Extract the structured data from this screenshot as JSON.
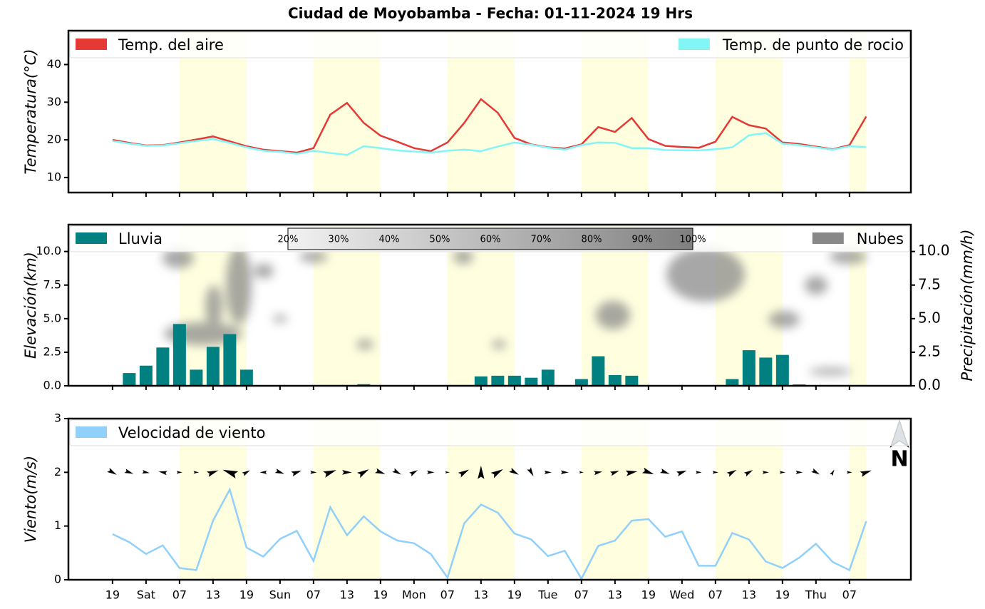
{
  "title": "Ciudad de Moyobamba   -   Fecha: 01-11-2024 19 Hrs",
  "chart_data": [
    {
      "type": "line",
      "ylabel": "Temperatura(°C)",
      "x": [
        0,
        3,
        6,
        9,
        12,
        15,
        18,
        21,
        24,
        27,
        30,
        33,
        36,
        39,
        42,
        45,
        48,
        51,
        54,
        57,
        60,
        63,
        66,
        69,
        72,
        75,
        78,
        81,
        84,
        87,
        90,
        93,
        96,
        99,
        102,
        105,
        108,
        111,
        114,
        117,
        120,
        123,
        126,
        129,
        132,
        135
      ],
      "day_spans": [
        [
          12,
          24
        ],
        [
          36,
          48
        ],
        [
          60,
          72
        ],
        [
          84,
          96
        ],
        [
          108,
          120
        ],
        [
          132,
          135
        ]
      ],
      "series": [
        {
          "name": "Temp. del aire",
          "color": "#e53935",
          "values": [
            20.0,
            19.2,
            18.5,
            18.6,
            19.3,
            20.1,
            20.9,
            19.6,
            18.3,
            17.4,
            17.0,
            16.6,
            17.8,
            26.7,
            29.8,
            24.5,
            21.1,
            19.5,
            17.8,
            17.0,
            19.3,
            24.5,
            30.8,
            27.2,
            20.5,
            18.8,
            18.0,
            17.7,
            18.8,
            23.4,
            22.1,
            25.8,
            20.2,
            18.4,
            18.1,
            17.9,
            19.5,
            26.1,
            23.9,
            23.0,
            19.3,
            18.9,
            18.2,
            17.5,
            18.6,
            26.2
          ]
        },
        {
          "name": "Temp. de punto de rocio",
          "color": "#84f5f5",
          "values": [
            19.7,
            19.0,
            18.4,
            18.5,
            19.1,
            19.7,
            20.2,
            19.2,
            18.0,
            17.1,
            16.8,
            16.3,
            17.1,
            16.5,
            16.0,
            18.3,
            17.8,
            17.2,
            16.9,
            16.6,
            17.1,
            17.4,
            17.0,
            18.2,
            19.3,
            18.7,
            17.9,
            17.4,
            18.6,
            19.3,
            19.2,
            17.8,
            17.8,
            17.3,
            17.2,
            17.2,
            17.5,
            18.0,
            21.2,
            21.8,
            19.0,
            18.6,
            18.0,
            17.4,
            18.3,
            18.1
          ]
        }
      ],
      "xlim": [
        -7.9,
        143
      ],
      "xticks": [
        0,
        6,
        12,
        18,
        24,
        30,
        36,
        42,
        48,
        54,
        60,
        66,
        72,
        78,
        84,
        90,
        96,
        102,
        108,
        114,
        120,
        126,
        132
      ],
      "ylim": [
        6,
        49
      ],
      "yticks": [
        10,
        20,
        30,
        40
      ]
    },
    {
      "type": "bar",
      "ylabel": "Elevación(km)",
      "y2label": "Precipitación(mm/h)",
      "x": [
        0,
        3,
        6,
        9,
        12,
        15,
        18,
        21,
        24,
        27,
        30,
        33,
        36,
        39,
        42,
        45,
        48,
        51,
        54,
        57,
        60,
        63,
        66,
        69,
        72,
        75,
        78,
        81,
        84,
        87,
        90,
        93,
        96,
        99,
        102,
        105,
        108,
        111,
        114,
        117,
        120,
        123,
        126,
        129,
        132,
        135
      ],
      "day_spans": [
        [
          12,
          24
        ],
        [
          36,
          48
        ],
        [
          60,
          72
        ],
        [
          84,
          96
        ],
        [
          108,
          120
        ],
        [
          132,
          135
        ]
      ],
      "series": [
        {
          "name": "Lluvia",
          "color": "#008080",
          "axis": "y2",
          "values": [
            0,
            0.95,
            1.5,
            2.85,
            4.6,
            1.2,
            2.9,
            3.85,
            1.2,
            0,
            0,
            0,
            0,
            0,
            0,
            0.12,
            0.03,
            0.03,
            0.05,
            0.03,
            0.03,
            0,
            0.7,
            0.75,
            0.75,
            0.6,
            1.2,
            0.02,
            0.5,
            2.2,
            0.8,
            0.75,
            0.03,
            0,
            0,
            0,
            0.05,
            0.5,
            2.65,
            2.1,
            2.3,
            0.1,
            0,
            0,
            0,
            0
          ]
        }
      ],
      "cloud_legend": {
        "name": "Nubes",
        "color": "#888888"
      },
      "colorbar": {
        "range": [
          20,
          100
        ],
        "ticks": [
          {
            "value": 20,
            "label": "20%"
          },
          {
            "value": 30,
            "label": "30%"
          },
          {
            "value": 40,
            "label": "40%"
          },
          {
            "value": 50,
            "label": "50%"
          },
          {
            "value": 60,
            "label": "60%"
          },
          {
            "value": 70,
            "label": "70%"
          },
          {
            "value": 80,
            "label": "80%"
          },
          {
            "value": 90,
            "label": "90%"
          },
          {
            "value": 100,
            "label": "100%"
          }
        ]
      },
      "xlim": [
        -7.9,
        143
      ],
      "xticks": [
        0,
        6,
        12,
        18,
        24,
        30,
        36,
        42,
        48,
        54,
        60,
        66,
        72,
        78,
        84,
        90,
        96,
        102,
        108,
        114,
        120,
        126,
        132
      ],
      "ylim": [
        0,
        12
      ],
      "yticks": [
        {
          "value": 0,
          "label": "0.0"
        },
        2.5,
        {
          "value": 5,
          "label": "5.0"
        },
        7.5,
        {
          "value": 10,
          "label": "10.0"
        }
      ],
      "y2lim": [
        0,
        12
      ],
      "y2ticks": [
        {
          "value": 0,
          "label": "0.0"
        },
        2.5,
        {
          "value": 5,
          "label": "5.0"
        },
        7.5,
        {
          "value": 10,
          "label": "10.0"
        }
      ]
    },
    {
      "type": "line",
      "ylabel": "Viento(m/s)",
      "north_label": "N",
      "x": [
        0,
        3,
        6,
        9,
        12,
        15,
        18,
        21,
        24,
        27,
        30,
        33,
        36,
        39,
        42,
        45,
        48,
        51,
        54,
        57,
        60,
        63,
        66,
        69,
        72,
        75,
        78,
        81,
        84,
        87,
        90,
        93,
        96,
        99,
        102,
        105,
        108,
        111,
        114,
        117,
        120,
        123,
        126,
        129,
        132,
        135
      ],
      "day_spans": [
        [
          12,
          24
        ],
        [
          36,
          48
        ],
        [
          60,
          72
        ],
        [
          84,
          96
        ],
        [
          108,
          120
        ],
        [
          132,
          135
        ]
      ],
      "series": [
        {
          "name": "Velocidad de viento",
          "color": "#90d0fa",
          "values": [
            0.85,
            0.7,
            0.48,
            0.64,
            0.22,
            0.18,
            1.1,
            1.68,
            0.6,
            0.43,
            0.76,
            0.91,
            0.35,
            1.35,
            0.83,
            1.18,
            0.9,
            0.73,
            0.68,
            0.48,
            0.04,
            1.05,
            1.4,
            1.25,
            0.86,
            0.75,
            0.44,
            0.54,
            0.02,
            0.63,
            0.73,
            1.1,
            1.13,
            0.8,
            0.9,
            0.26,
            0.26,
            0.87,
            0.75,
            0.34,
            0.22,
            0.41,
            0.67,
            0.33,
            0.18,
            1.09
          ]
        }
      ],
      "wind_direction_deg": [
        330,
        340,
        350,
        170,
        0,
        0,
        20,
        160,
        30,
        180,
        340,
        20,
        0,
        20,
        0,
        30,
        340,
        330,
        30,
        0,
        0,
        30,
        90,
        30,
        330,
        300,
        0,
        0,
        0,
        10,
        20,
        10,
        340,
        340,
        20,
        0,
        0,
        30,
        30,
        0,
        0,
        0,
        330,
        60,
        0,
        20
      ],
      "xlim": [
        -7.9,
        143
      ],
      "xticks": [
        {
          "value": 0,
          "label": "19"
        },
        {
          "value": 6,
          "label": "Sat"
        },
        {
          "value": 12,
          "label": "07"
        },
        {
          "value": 18,
          "label": "13"
        },
        {
          "value": 24,
          "label": "19"
        },
        {
          "value": 30,
          "label": "Sun"
        },
        {
          "value": 36,
          "label": "07"
        },
        {
          "value": 42,
          "label": "13"
        },
        {
          "value": 48,
          "label": "19"
        },
        {
          "value": 54,
          "label": "Mon"
        },
        {
          "value": 60,
          "label": "07"
        },
        {
          "value": 66,
          "label": "13"
        },
        {
          "value": 72,
          "label": "19"
        },
        {
          "value": 78,
          "label": "Tue"
        },
        {
          "value": 84,
          "label": "07"
        },
        {
          "value": 90,
          "label": "13"
        },
        {
          "value": 96,
          "label": "19"
        },
        {
          "value": 102,
          "label": "Wed"
        },
        {
          "value": 108,
          "label": "07"
        },
        {
          "value": 114,
          "label": "13"
        },
        {
          "value": 120,
          "label": "19"
        },
        {
          "value": 126,
          "label": "Thu"
        },
        {
          "value": 132,
          "label": "07"
        }
      ],
      "ylim": [
        0,
        3
      ],
      "yticks": [
        0,
        1,
        2,
        3
      ]
    }
  ]
}
